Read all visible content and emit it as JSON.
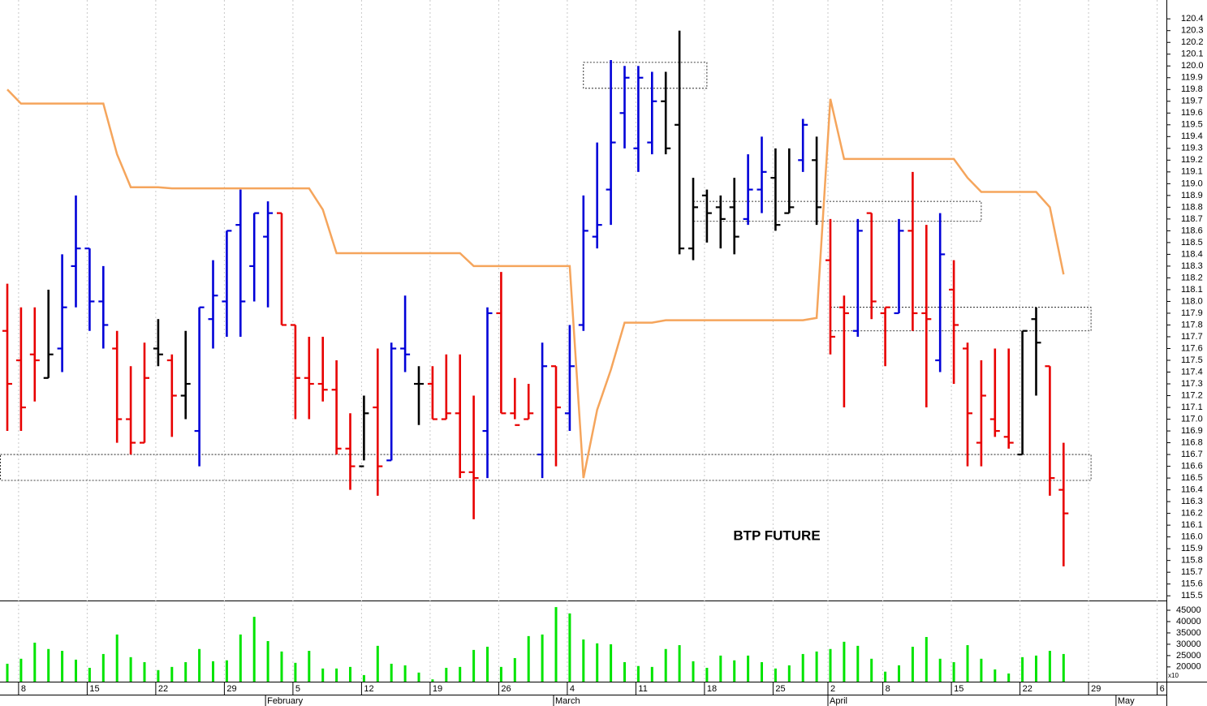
{
  "chart_data": {
    "type": "ohlc",
    "annotation": "BTP FUTURE",
    "categories": [
      null,
      "8",
      null,
      null,
      null,
      null,
      "15",
      null,
      null,
      null,
      null,
      "22",
      null,
      null,
      null,
      null,
      "29",
      null,
      null,
      null,
      null,
      "5",
      null,
      null,
      null,
      null,
      "12",
      null,
      null,
      null,
      null,
      "19",
      null,
      null,
      null,
      null,
      "26",
      null,
      null,
      null,
      null,
      "4",
      null,
      null,
      null,
      null,
      "11",
      null,
      null,
      null,
      null,
      "18",
      null,
      null,
      null,
      null,
      "25",
      null,
      null,
      null,
      "2",
      null,
      null,
      null,
      "8",
      null,
      null,
      null,
      null,
      "15",
      null,
      null,
      null,
      null,
      "22",
      null,
      null,
      null,
      null,
      "29",
      null,
      null,
      null,
      null,
      "6"
    ],
    "months": [
      {
        "index": 19,
        "label": "February"
      },
      {
        "index": 40,
        "label": "March"
      },
      {
        "index": 60,
        "label": "April"
      },
      {
        "index": 81,
        "label": "May"
      }
    ],
    "ohlc": {
      "open": [
        117.75,
        117.5,
        117.55,
        117.35,
        117.6,
        118.3,
        118.45,
        118.0,
        117.6,
        117.0,
        116.8,
        117.6,
        117.5,
        117.2,
        116.9,
        117.85,
        118.0,
        118.65,
        118.3,
        118.55,
        118.75,
        117.8,
        117.35,
        117.3,
        117.25,
        116.75,
        116.6,
        117.1,
        116.65,
        117.6,
        117.3,
        117.3,
        117.0,
        117.05,
        116.55,
        116.9,
        117.9,
        117.05,
        117.0,
        116.7,
        117.45,
        117.05,
        117.8,
        118.55,
        118.95,
        119.6,
        119.3,
        119.35,
        119.7,
        119.5,
        118.45,
        118.9,
        118.8,
        118.8,
        118.7,
        118.95,
        119.05,
        118.75,
        119.2,
        119.2,
        118.35,
        117.95,
        117.75,
        118.75,
        117.9,
        117.9,
        118.6,
        117.9,
        117.5,
        118.1,
        117.6,
        116.8,
        117.0,
        116.85,
        116.7,
        117.85,
        117.45,
        116.4,
        null,
        null,
        null,
        null,
        null,
        null,
        null
      ],
      "high": [
        118.15,
        117.95,
        117.95,
        118.1,
        118.4,
        118.9,
        118.45,
        118.3,
        117.75,
        117.45,
        117.65,
        117.85,
        117.55,
        117.75,
        117.95,
        118.35,
        118.6,
        118.95,
        118.75,
        118.85,
        118.75,
        117.8,
        117.7,
        117.7,
        117.5,
        117.05,
        117.2,
        117.6,
        117.65,
        118.05,
        117.45,
        117.45,
        117.55,
        117.55,
        117.2,
        117.95,
        118.25,
        117.35,
        117.3,
        117.65,
        117.45,
        117.8,
        118.9,
        119.35,
        120.05,
        120.0,
        120.0,
        119.95,
        119.95,
        120.3,
        119.05,
        118.95,
        118.9,
        119.05,
        119.25,
        119.4,
        119.3,
        119.3,
        119.55,
        119.4,
        118.7,
        118.05,
        118.7,
        118.75,
        117.95,
        118.7,
        119.1,
        118.65,
        118.75,
        118.35,
        117.65,
        117.5,
        117.6,
        117.6,
        117.75,
        117.95,
        117.45,
        116.8,
        null,
        null,
        null,
        null,
        null,
        null,
        null
      ],
      "low": [
        116.9,
        116.9,
        117.15,
        117.35,
        117.4,
        117.95,
        117.75,
        117.6,
        116.8,
        116.7,
        116.8,
        117.45,
        116.85,
        117.0,
        116.6,
        117.6,
        117.7,
        117.7,
        118.0,
        117.95,
        117.8,
        117.0,
        117.0,
        117.15,
        116.7,
        116.4,
        116.65,
        116.35,
        116.65,
        117.4,
        116.95,
        117.0,
        117.0,
        116.5,
        116.15,
        116.5,
        117.05,
        117.0,
        117.0,
        116.5,
        116.6,
        116.9,
        117.75,
        118.45,
        118.65,
        119.3,
        119.1,
        119.25,
        119.25,
        118.4,
        118.35,
        118.5,
        118.45,
        118.4,
        118.65,
        118.75,
        118.6,
        118.75,
        119.1,
        118.65,
        117.55,
        117.1,
        117.7,
        117.85,
        117.45,
        117.9,
        117.75,
        117.1,
        117.4,
        117.3,
        116.6,
        116.6,
        116.85,
        116.75,
        116.7,
        117.2,
        116.35,
        115.75,
        null,
        null,
        null,
        null,
        null,
        null,
        null
      ],
      "close": [
        117.3,
        117.1,
        117.5,
        117.55,
        117.95,
        118.45,
        118.0,
        117.8,
        117.0,
        116.8,
        117.35,
        117.55,
        117.2,
        117.3,
        117.95,
        118.05,
        118.6,
        118.0,
        118.75,
        118.75,
        117.8,
        117.35,
        117.3,
        117.25,
        116.75,
        116.6,
        117.05,
        116.6,
        117.6,
        117.55,
        117.3,
        117.0,
        117.05,
        116.55,
        116.5,
        117.9,
        117.05,
        116.95,
        117.05,
        117.45,
        117.1,
        117.45,
        118.6,
        118.65,
        119.35,
        119.9,
        119.9,
        119.7,
        119.3,
        118.45,
        118.8,
        118.75,
        118.7,
        118.55,
        118.95,
        119.1,
        118.65,
        118.8,
        119.5,
        118.8,
        117.7,
        117.9,
        118.6,
        118.0,
        117.95,
        118.6,
        117.9,
        117.85,
        118.4,
        117.8,
        117.05,
        117.2,
        116.9,
        116.8,
        117.75,
        117.65,
        116.5,
        116.2,
        null,
        null,
        null,
        null,
        null,
        null,
        null
      ],
      "colors": [
        "#e80000",
        "#e80000",
        "#e80000",
        "#000000",
        "#0000d8",
        "#0000d8",
        "#0000d8",
        "#0000d8",
        "#e80000",
        "#e80000",
        "#e80000",
        "#000000",
        "#e80000",
        "#000000",
        "#0000d8",
        "#0000d8",
        "#0000d8",
        "#0000d8",
        "#0000d8",
        "#0000d8",
        "#e80000",
        "#e80000",
        "#e80000",
        "#e80000",
        "#e80000",
        "#e80000",
        "#000000",
        "#e80000",
        "#0000d8",
        "#0000d8",
        "#000000",
        "#e80000",
        "#e80000",
        "#e80000",
        "#e80000",
        "#0000d8",
        "#e80000",
        "#e80000",
        "#e80000",
        "#0000d8",
        "#e80000",
        "#0000d8",
        "#0000d8",
        "#0000d8",
        "#0000d8",
        "#0000d8",
        "#0000d8",
        "#0000d8",
        "#000000",
        "#000000",
        "#000000",
        "#000000",
        "#000000",
        "#000000",
        "#0000d8",
        "#0000d8",
        "#000000",
        "#000000",
        "#0000d8",
        "#000000",
        "#e80000",
        "#e80000",
        "#0000d8",
        "#e80000",
        "#e80000",
        "#0000d8",
        "#e80000",
        "#e80000",
        "#0000d8",
        "#e80000",
        "#e80000",
        "#e80000",
        "#e80000",
        "#e80000",
        "#000000",
        "#000000",
        "#e80000",
        "#e80000",
        null,
        null,
        null,
        null,
        null,
        null,
        null
      ]
    },
    "stop_line": {
      "color": "#f5a55c",
      "values": [
        119.8,
        119.68,
        119.68,
        119.68,
        119.68,
        119.68,
        119.68,
        119.68,
        119.25,
        118.97,
        118.97,
        118.97,
        118.96,
        118.96,
        118.96,
        118.96,
        118.96,
        118.96,
        118.96,
        118.96,
        118.96,
        118.96,
        118.96,
        118.78,
        118.41,
        118.41,
        118.41,
        118.41,
        118.41,
        118.41,
        118.41,
        118.41,
        118.41,
        118.41,
        118.3,
        118.3,
        118.3,
        118.3,
        118.3,
        118.3,
        118.3,
        118.3,
        116.5,
        117.08,
        117.42,
        117.82,
        117.82,
        117.82,
        117.84,
        117.84,
        117.84,
        117.84,
        117.84,
        117.84,
        117.84,
        117.84,
        117.84,
        117.84,
        117.84,
        117.86,
        119.72,
        119.21,
        119.21,
        119.21,
        119.21,
        119.21,
        119.21,
        119.21,
        119.21,
        119.21,
        119.05,
        118.93,
        118.93,
        118.93,
        118.93,
        118.93,
        118.8,
        118.23,
        null,
        null,
        null,
        null,
        null,
        null,
        null
      ]
    },
    "zones": [
      {
        "start": 42,
        "end": 51,
        "low": 119.81,
        "high": 120.03
      },
      {
        "start": 50,
        "end": 71,
        "low": 118.68,
        "high": 118.85
      },
      {
        "start": 60,
        "end": 79,
        "low": 117.75,
        "high": 117.95
      },
      {
        "start": -0.5,
        "end": 79,
        "low": 116.48,
        "high": 116.7
      }
    ],
    "ylim": [
      115.46,
      120.56
    ],
    "yticks": [
      115.5,
      115.6,
      115.7,
      115.8,
      115.9,
      {
        "value": 116,
        "label": "116.0"
      },
      116.1,
      116.2,
      116.3,
      116.4,
      116.5,
      116.6,
      116.7,
      116.8,
      116.9,
      {
        "value": 117,
        "label": "117.0"
      },
      117.1,
      117.2,
      117.3,
      117.4,
      117.5,
      117.6,
      117.7,
      117.8,
      117.9,
      {
        "value": 118,
        "label": "118.0"
      },
      118.1,
      118.2,
      118.3,
      118.4,
      118.5,
      118.6,
      118.7,
      118.8,
      118.9,
      {
        "value": 119,
        "label": "119.0"
      },
      119.1,
      119.2,
      119.3,
      119.4,
      119.5,
      119.6,
      119.7,
      119.8,
      119.9,
      {
        "value": 120,
        "label": "120.0"
      },
      120.1,
      120.2,
      120.3,
      120.4
    ],
    "volume": {
      "type": "bar",
      "color": "#00e400",
      "scale_label": "x10",
      "values": [
        21400,
        23600,
        30700,
        27900,
        27100,
        23200,
        19600,
        25700,
        34300,
        24300,
        22100,
        18600,
        20000,
        22100,
        27900,
        22500,
        22900,
        34300,
        42100,
        31400,
        26800,
        21800,
        27100,
        19300,
        19300,
        20000,
        16400,
        29300,
        21400,
        20700,
        17500,
        14500,
        19600,
        20000,
        27500,
        28900,
        20000,
        23900,
        33600,
        34300,
        46400,
        43600,
        32100,
        30400,
        30000,
        22100,
        20400,
        20000,
        27900,
        29600,
        22500,
        19600,
        25000,
        22900,
        25000,
        22100,
        19300,
        20700,
        25700,
        26800,
        27900,
        31100,
        29300,
        23600,
        17900,
        20700,
        28900,
        33200,
        23600,
        22100,
        29600,
        23600,
        18900,
        17100,
        24300,
        25000,
        27100,
        25700,
        null,
        null,
        null,
        null,
        null,
        null,
        null
      ],
      "ylim": [
        13500,
        49300
      ],
      "yticks": [
        20000,
        25000,
        30000,
        35000,
        40000,
        45000
      ]
    },
    "grid": true
  }
}
